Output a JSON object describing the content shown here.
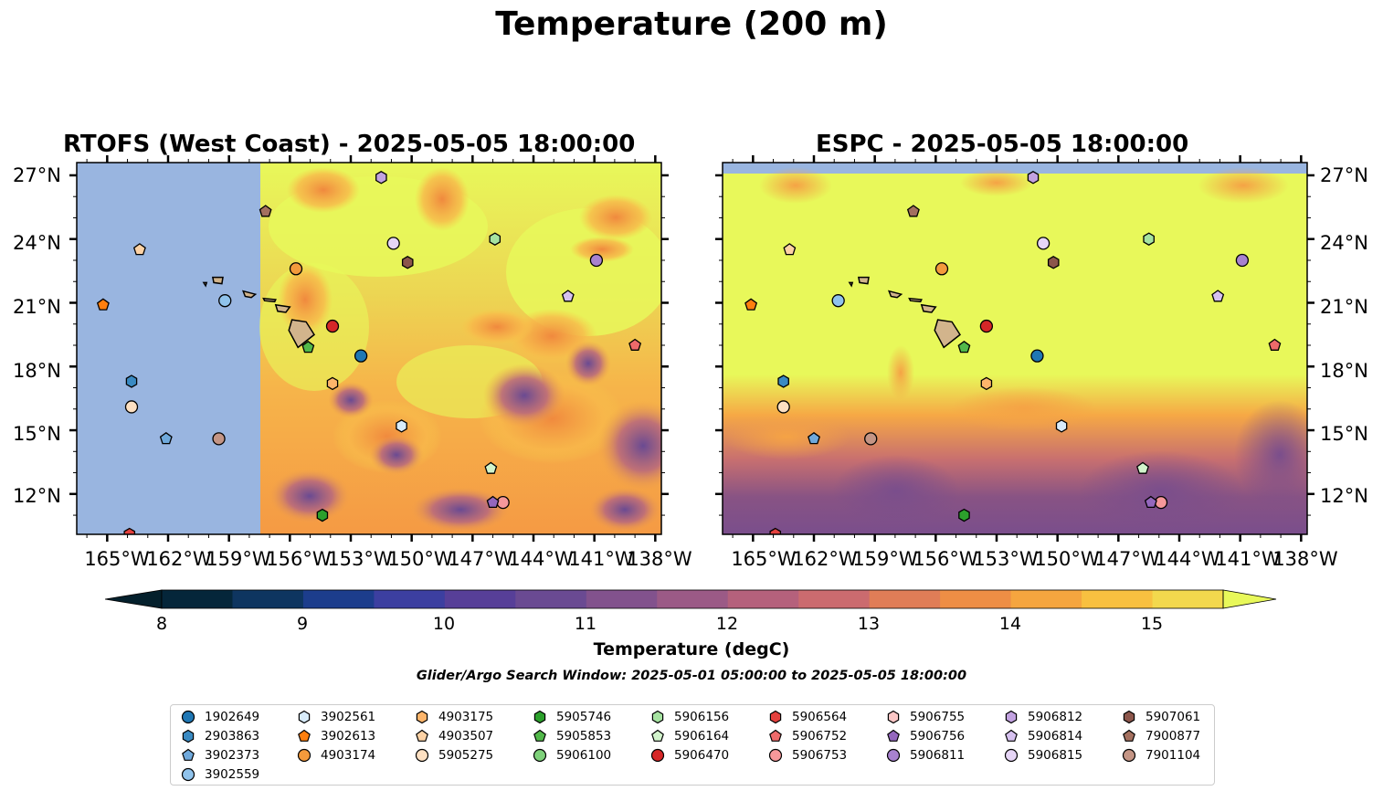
{
  "figure": {
    "title": "Temperature (200 m)",
    "search_window": "Glider/Argo Search Window: 2025-05-01 05:00:00 to 2025-05-05 18:00:00"
  },
  "panels": [
    {
      "title": "RTOFS (West Coast) - 2025-05-05 18:00:00",
      "model": "RTOFS"
    },
    {
      "title": "ESPC - 2025-05-05 18:00:00",
      "model": "ESPC"
    }
  ],
  "axes": {
    "lon_ticks": [
      "165°W",
      "162°W",
      "159°W",
      "156°W",
      "153°W",
      "150°W",
      "147°W",
      "144°W",
      "141°W",
      "138°W"
    ],
    "lat_ticks": [
      "27°N",
      "24°N",
      "21°N",
      "18°N",
      "15°N",
      "12°N"
    ]
  },
  "colorbar": {
    "label": "Temperature (degC)",
    "ticks": [
      "8",
      "9",
      "10",
      "11",
      "12",
      "13",
      "14",
      "15"
    ],
    "range": [
      8,
      15.5
    ],
    "extend": "both",
    "colormap": "thermal"
  },
  "colors": {
    "land": "#d2b48c",
    "no_data": "#99b5e0",
    "warm": "#e8f85a"
  },
  "floats": [
    {
      "id": "1902649",
      "marker": "circle",
      "color": "#1f77b4",
      "lon": -152.5,
      "lat": 18.5,
      "espc_lon": -151.0,
      "espc_lat": 18.5
    },
    {
      "id": "2903863",
      "marker": "hexagon",
      "color": "#3a8ac2",
      "lon": -163.8,
      "lat": 17.3,
      "espc_lon": -163.5,
      "espc_lat": 17.3
    },
    {
      "id": "3902373",
      "marker": "pentagon",
      "color": "#6fa9dc",
      "lon": -162.1,
      "lat": 14.6,
      "espc_lon": -162.0,
      "espc_lat": 14.6
    },
    {
      "id": "3902559",
      "marker": "circle",
      "color": "#90c3ec",
      "lon": -159.2,
      "lat": 21.1,
      "espc_lon": -160.8,
      "espc_lat": 21.1
    },
    {
      "id": "3902561",
      "marker": "hexagon",
      "color": "#d8ecfb",
      "lon": -150.5,
      "lat": 15.2,
      "espc_lon": -149.8,
      "espc_lat": 15.2
    },
    {
      "id": "3902613",
      "marker": "pentagon",
      "color": "#ff7f0e",
      "lon": -165.2,
      "lat": 20.9,
      "espc_lon": -165.1,
      "espc_lat": 20.9
    },
    {
      "id": "4903174",
      "marker": "circle",
      "color": "#f39a3c",
      "lon": -155.7,
      "lat": 22.6,
      "espc_lon": -155.7,
      "espc_lat": 22.6
    },
    {
      "id": "4903175",
      "marker": "hexagon",
      "color": "#fdb56b",
      "lon": -153.9,
      "lat": 17.2,
      "espc_lon": -153.5,
      "espc_lat": 17.2
    },
    {
      "id": "4903507",
      "marker": "pentagon",
      "color": "#fdd2a5",
      "lon": -163.4,
      "lat": 23.5,
      "espc_lon": -163.2,
      "espc_lat": 23.5
    },
    {
      "id": "5905275",
      "marker": "circle",
      "color": "#fde0c2",
      "lon": -163.8,
      "lat": 16.1,
      "espc_lon": -163.5,
      "espc_lat": 16.1
    },
    {
      "id": "5905746",
      "marker": "hexagon",
      "color": "#2ca02c",
      "lon": -154.4,
      "lat": 11.0,
      "espc_lon": -154.6,
      "espc_lat": 11.0
    },
    {
      "id": "5905853",
      "marker": "pentagon",
      "color": "#52b84a",
      "lon": -155.1,
      "lat": 18.9,
      "espc_lon": -154.6,
      "espc_lat": 18.9
    },
    {
      "id": "5906100",
      "marker": "circle",
      "color": "#7ed17a",
      "lon": null,
      "lat": null,
      "espc_lon": null,
      "espc_lat": null
    },
    {
      "id": "5906156",
      "marker": "hexagon",
      "color": "#a6e3a1",
      "lon": -145.9,
      "lat": 24.0,
      "espc_lon": -145.5,
      "espc_lat": 24.0
    },
    {
      "id": "5906164",
      "marker": "pentagon",
      "color": "#d2f4cc",
      "lon": -146.1,
      "lat": 13.2,
      "espc_lon": -145.8,
      "espc_lat": 13.2
    },
    {
      "id": "5906470",
      "marker": "circle",
      "color": "#d62728",
      "lon": -153.9,
      "lat": 19.9,
      "espc_lon": -153.5,
      "espc_lat": 19.9
    },
    {
      "id": "5906564",
      "marker": "hexagon",
      "color": "#e4413e",
      "lon": -163.9,
      "lat": 10.1,
      "espc_lon": -163.9,
      "espc_lat": 10.1
    },
    {
      "id": "5906752",
      "marker": "pentagon",
      "color": "#ee6a6a",
      "lon": -139.0,
      "lat": 19.0,
      "espc_lon": -139.3,
      "espc_lat": 19.0
    },
    {
      "id": "5906753",
      "marker": "circle",
      "color": "#f6989a",
      "lon": -145.5,
      "lat": 11.6,
      "espc_lon": -144.9,
      "espc_lat": 11.6
    },
    {
      "id": "5906755",
      "marker": "hexagon",
      "color": "#fbc7c6",
      "lon": null,
      "lat": null,
      "espc_lon": null,
      "espc_lat": null
    },
    {
      "id": "5906756",
      "marker": "pentagon",
      "color": "#9467bd",
      "lon": -146.0,
      "lat": 11.6,
      "espc_lon": -145.4,
      "espc_lat": 11.6
    },
    {
      "id": "5906811",
      "marker": "circle",
      "color": "#a882cf",
      "lon": -140.9,
      "lat": 23.0,
      "espc_lon": -140.9,
      "espc_lat": 23.0
    },
    {
      "id": "5906812",
      "marker": "hexagon",
      "color": "#c2a2e0",
      "lon": -151.5,
      "lat": 26.9,
      "espc_lon": -151.2,
      "espc_lat": 26.9
    },
    {
      "id": "5906814",
      "marker": "pentagon",
      "color": "#d6c1ef",
      "lon": -142.3,
      "lat": 21.3,
      "espc_lon": -142.1,
      "espc_lat": 21.3
    },
    {
      "id": "5906815",
      "marker": "circle",
      "color": "#e6d5f6",
      "lon": -150.9,
      "lat": 23.8,
      "espc_lon": -150.7,
      "espc_lat": 23.8
    },
    {
      "id": "5907061",
      "marker": "hexagon",
      "color": "#8c564b",
      "lon": -150.2,
      "lat": 22.9,
      "espc_lon": -150.2,
      "espc_lat": 22.9
    },
    {
      "id": "7900877",
      "marker": "pentagon",
      "color": "#a4705f",
      "lon": -157.2,
      "lat": 25.3,
      "espc_lon": -157.1,
      "espc_lat": 25.3
    },
    {
      "id": "7901104",
      "marker": "circle",
      "color": "#c49585",
      "lon": -159.5,
      "lat": 14.6,
      "espc_lon": -159.2,
      "espc_lat": 14.6
    }
  ]
}
